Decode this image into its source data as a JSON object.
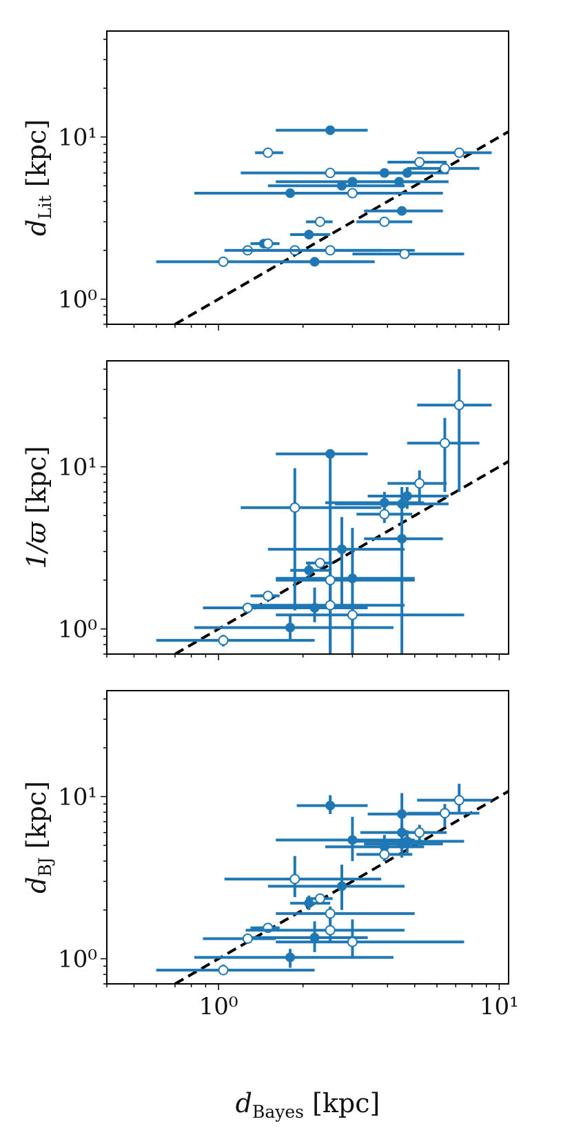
{
  "chart_data": [
    {
      "type": "scatter",
      "ylabel": {
        "main": "d",
        "sub": "Lit",
        "unit": "[kpc]"
      },
      "xscale": "log",
      "yscale": "log",
      "xlim": [
        0.4,
        10.8
      ],
      "ylim": [
        0.7,
        45
      ],
      "xticks": [
        {
          "value": 1,
          "label": "10⁰"
        },
        {
          "value": 10,
          "label": "10¹"
        }
      ],
      "yticks": [
        {
          "value": 1,
          "label": "10⁰"
        },
        {
          "value": 10,
          "label": "10¹"
        }
      ],
      "show_xtick_labels": false,
      "reference_line": "y = x (dashed)",
      "series": [
        {
          "marker": "filled",
          "points": [
            {
              "x": 2.5,
              "y": 11,
              "xerr": [
                1.6,
                3.4
              ]
            },
            {
              "x": 3.9,
              "y": 6,
              "xerr": [
                2.4,
                5.4
              ]
            },
            {
              "x": 4.7,
              "y": 6,
              "xerr": [
                3.4,
                6.6
              ]
            },
            {
              "x": 3.0,
              "y": 5.3,
              "xerr": [
                1.6,
                5.0
              ]
            },
            {
              "x": 2.75,
              "y": 5.0,
              "xerr": [
                1.5,
                4.6
              ]
            },
            {
              "x": 4.4,
              "y": 5.3,
              "xerr": [
                2.6,
                6.6
              ]
            },
            {
              "x": 1.8,
              "y": 4.5,
              "xerr": [
                0.82,
                4.2
              ]
            },
            {
              "x": 4.5,
              "y": 3.5,
              "xerr": [
                3.3,
                6.3
              ]
            },
            {
              "x": 2.1,
              "y": 2.5,
              "xerr": [
                1.8,
                2.5
              ]
            },
            {
              "x": 1.45,
              "y": 2.2,
              "xerr": [
                1.3,
                1.6
              ]
            },
            {
              "x": 2.2,
              "y": 1.7,
              "xerr": [
                1.3,
                3.4
              ]
            }
          ]
        },
        {
          "marker": "open",
          "points": [
            {
              "x": 1.5,
              "y": 8.0,
              "xerr": [
                1.35,
                1.7
              ]
            },
            {
              "x": 7.2,
              "y": 8.0,
              "xerr": [
                5.1,
                9.4
              ]
            },
            {
              "x": 5.2,
              "y": 7.0,
              "xerr": [
                4.0,
                6.5
              ]
            },
            {
              "x": 6.4,
              "y": 6.4,
              "xerr": [
                4.7,
                8.5
              ]
            },
            {
              "x": 2.5,
              "y": 6.0,
              "xerr": [
                1.2,
                5.3
              ]
            },
            {
              "x": 3.0,
              "y": 4.5,
              "xerr": [
                1.9,
                6.3
              ]
            },
            {
              "x": 2.3,
              "y": 3.0,
              "xerr": [
                2.05,
                2.55
              ]
            },
            {
              "x": 3.9,
              "y": 3.0,
              "xerr": [
                3.1,
                4.9
              ]
            },
            {
              "x": 1.5,
              "y": 2.2,
              "xerr": [
                1.35,
                1.65
              ]
            },
            {
              "x": 1.27,
              "y": 2.0,
              "xerr": [
                1.05,
                1.6
              ]
            },
            {
              "x": 1.87,
              "y": 2.0,
              "xerr": [
                1.2,
                3.8
              ]
            },
            {
              "x": 2.5,
              "y": 2.0,
              "xerr": [
                1.6,
                5.0
              ]
            },
            {
              "x": 4.6,
              "y": 1.9,
              "xerr": [
                3.0,
                7.5
              ]
            },
            {
              "x": 1.04,
              "y": 1.7,
              "xerr": [
                0.6,
                3.6
              ]
            }
          ]
        }
      ]
    },
    {
      "type": "scatter",
      "ylabel": {
        "main": "1/ϖ",
        "sub": "",
        "unit": "[kpc]"
      },
      "xscale": "log",
      "yscale": "log",
      "xlim": [
        0.4,
        10.8
      ],
      "ylim": [
        0.7,
        45
      ],
      "xticks": [
        {
          "value": 1,
          "label": "10⁰"
        },
        {
          "value": 10,
          "label": "10¹"
        }
      ],
      "yticks": [
        {
          "value": 1,
          "label": "10⁰"
        },
        {
          "value": 10,
          "label": "10¹"
        }
      ],
      "show_xtick_labels": false,
      "reference_line": "y = x (dashed)",
      "series": [
        {
          "marker": "filled",
          "points": [
            {
              "x": 2.5,
              "y": 12,
              "xerr": [
                1.6,
                3.4
              ],
              "yerr": [
                0.7,
                12
              ]
            },
            {
              "x": 3.9,
              "y": 6.0,
              "xerr": [
                2.4,
                5.4
              ],
              "yerr": [
                5.0,
                7.0
              ]
            },
            {
              "x": 4.7,
              "y": 6.6,
              "xerr": [
                3.4,
                6.6
              ],
              "yerr": [
                5.5,
                7.5
              ]
            },
            {
              "x": 4.5,
              "y": 5.9,
              "xerr": [
                2.6,
                6.6
              ],
              "yerr": [
                4.5,
                7.5
              ]
            },
            {
              "x": 4.5,
              "y": 3.6,
              "xerr": [
                3.3,
                6.3
              ],
              "yerr": [
                0.7,
                5.0
              ]
            },
            {
              "x": 2.75,
              "y": 3.1,
              "xerr": [
                1.5,
                4.6
              ],
              "yerr": [
                1.4,
                4.9
              ]
            },
            {
              "x": 2.1,
              "y": 2.3,
              "xerr": [
                1.8,
                2.5
              ],
              "yerr": [
                2.1,
                2.5
              ]
            },
            {
              "x": 3.0,
              "y": 2.05,
              "xerr": [
                1.6,
                5.0
              ],
              "yerr": [
                0.7,
                4.2
              ]
            },
            {
              "x": 1.5,
              "y": 1.6,
              "xerr": [
                1.3,
                1.65
              ],
              "yerr": [
                1.5,
                1.7
              ]
            },
            {
              "x": 2.2,
              "y": 1.35,
              "xerr": [
                1.3,
                3.4
              ],
              "yerr": [
                1.1,
                1.8
              ]
            },
            {
              "x": 1.8,
              "y": 1.02,
              "xerr": [
                0.82,
                4.2
              ],
              "yerr": [
                0.85,
                1.2
              ]
            }
          ]
        },
        {
          "marker": "open",
          "points": [
            {
              "x": 7.2,
              "y": 24,
              "xerr": [
                5.1,
                9.4
              ],
              "yerr": [
                7.0,
                40
              ]
            },
            {
              "x": 6.4,
              "y": 14,
              "xerr": [
                4.7,
                8.5
              ],
              "yerr": [
                7.0,
                20
              ]
            },
            {
              "x": 5.2,
              "y": 7.9,
              "xerr": [
                4.0,
                6.5
              ],
              "yerr": [
                6.0,
                9.5
              ]
            },
            {
              "x": 3.9,
              "y": 5.1,
              "xerr": [
                3.1,
                4.9
              ],
              "yerr": [
                4.5,
                6.5
              ]
            },
            {
              "x": 1.87,
              "y": 5.6,
              "xerr": [
                1.2,
                3.8
              ],
              "yerr": [
                1.3,
                9.8
              ]
            },
            {
              "x": 2.3,
              "y": 2.55,
              "xerr": [
                2.05,
                2.55
              ],
              "yerr": [
                2.4,
                2.7
              ]
            },
            {
              "x": 2.5,
              "y": 2.0,
              "xerr": [
                1.6,
                5.0
              ],
              "yerr": [
                1.3,
                2.4
              ]
            },
            {
              "x": 1.5,
              "y": 1.6,
              "xerr": [
                1.35,
                1.65
              ],
              "yerr": [
                1.5,
                1.7
              ]
            },
            {
              "x": 2.5,
              "y": 1.4,
              "xerr": [
                1.25,
                4.6
              ],
              "yerr": [
                0.7,
                1.9
              ]
            },
            {
              "x": 1.27,
              "y": 1.35,
              "xerr": [
                0.88,
                1.6
              ],
              "yerr": [
                1.25,
                1.45
              ]
            },
            {
              "x": 3.0,
              "y": 1.22,
              "xerr": [
                1.6,
                7.5
              ],
              "yerr": [
                0.7,
                1.5
              ]
            },
            {
              "x": 1.04,
              "y": 0.85,
              "xerr": [
                0.6,
                2.2
              ],
              "yerr": [
                0.78,
                0.92
              ]
            }
          ]
        }
      ]
    },
    {
      "type": "scatter",
      "ylabel": {
        "main": "d",
        "sub": "BJ",
        "unit": "[kpc]"
      },
      "xlabel": {
        "main": "d",
        "sub": "Bayes",
        "unit": "[kpc]"
      },
      "xscale": "log",
      "yscale": "log",
      "xlim": [
        0.4,
        10.8
      ],
      "ylim": [
        0.7,
        45
      ],
      "xticks": [
        {
          "value": 1,
          "label": "10⁰"
        },
        {
          "value": 10,
          "label": "10¹"
        }
      ],
      "yticks": [
        {
          "value": 1,
          "label": "10⁰"
        },
        {
          "value": 10,
          "label": "10¹"
        }
      ],
      "show_xtick_labels": true,
      "reference_line": "y = x (dashed)",
      "series": [
        {
          "marker": "filled",
          "points": [
            {
              "x": 2.5,
              "y": 8.8,
              "xerr": [
                1.9,
                3.4
              ],
              "yerr": [
                7.8,
                10.2
              ]
            },
            {
              "x": 4.5,
              "y": 7.8,
              "xerr": [
                3.4,
                6.6
              ],
              "yerr": [
                6.2,
                10.5
              ]
            },
            {
              "x": 4.5,
              "y": 6.0,
              "xerr": [
                3.2,
                5.6
              ],
              "yerr": [
                5.2,
                6.8
              ]
            },
            {
              "x": 3.0,
              "y": 5.4,
              "xerr": [
                1.6,
                5.0
              ],
              "yerr": [
                4.0,
                7.5
              ]
            },
            {
              "x": 3.9,
              "y": 4.9,
              "xerr": [
                2.4,
                5.4
              ],
              "yerr": [
                4.0,
                5.8
              ]
            },
            {
              "x": 4.5,
              "y": 5.1,
              "xerr": [
                3.3,
                6.3
              ],
              "yerr": [
                4.2,
                6.3
              ]
            },
            {
              "x": 4.7,
              "y": 5.3,
              "xerr": [
                3.0,
                7.5
              ],
              "yerr": [
                4.4,
                6.2
              ]
            },
            {
              "x": 2.75,
              "y": 2.8,
              "xerr": [
                1.5,
                4.6
              ],
              "yerr": [
                2.0,
                3.8
              ]
            },
            {
              "x": 2.1,
              "y": 2.2,
              "xerr": [
                1.8,
                2.5
              ],
              "yerr": [
                2.0,
                2.45
              ]
            },
            {
              "x": 1.5,
              "y": 1.55,
              "xerr": [
                1.3,
                1.65
              ],
              "yerr": [
                1.45,
                1.65
              ]
            },
            {
              "x": 2.2,
              "y": 1.35,
              "xerr": [
                1.3,
                3.4
              ],
              "yerr": [
                1.1,
                1.7
              ]
            },
            {
              "x": 1.8,
              "y": 1.02,
              "xerr": [
                0.82,
                4.2
              ],
              "yerr": [
                0.88,
                1.15
              ]
            }
          ]
        },
        {
          "marker": "open",
          "points": [
            {
              "x": 7.2,
              "y": 9.5,
              "xerr": [
                5.1,
                9.4
              ],
              "yerr": [
                8.0,
                12.0
              ]
            },
            {
              "x": 6.4,
              "y": 7.9,
              "xerr": [
                4.7,
                8.5
              ],
              "yerr": [
                6.5,
                9.0
              ]
            },
            {
              "x": 5.2,
              "y": 6.0,
              "xerr": [
                4.0,
                6.5
              ],
              "yerr": [
                5.3,
                6.7
              ]
            },
            {
              "x": 3.9,
              "y": 4.4,
              "xerr": [
                3.1,
                4.9
              ],
              "yerr": [
                4.0,
                4.8
              ]
            },
            {
              "x": 1.87,
              "y": 3.1,
              "xerr": [
                1.05,
                3.8
              ],
              "yerr": [
                2.4,
                4.3
              ]
            },
            {
              "x": 2.3,
              "y": 2.35,
              "xerr": [
                2.05,
                2.55
              ],
              "yerr": [
                2.25,
                2.5
              ]
            },
            {
              "x": 2.5,
              "y": 1.9,
              "xerr": [
                1.6,
                5.0
              ],
              "yerr": [
                1.7,
                2.1
              ]
            },
            {
              "x": 1.5,
              "y": 1.55,
              "xerr": [
                1.35,
                1.65
              ],
              "yerr": [
                1.45,
                1.65
              ]
            },
            {
              "x": 2.5,
              "y": 1.5,
              "xerr": [
                1.25,
                4.6
              ],
              "yerr": [
                1.25,
                1.8
              ]
            },
            {
              "x": 1.27,
              "y": 1.33,
              "xerr": [
                0.88,
                1.6
              ],
              "yerr": [
                1.25,
                1.42
              ]
            },
            {
              "x": 3.0,
              "y": 1.27,
              "xerr": [
                1.6,
                7.5
              ],
              "yerr": [
                1.0,
                1.75
              ]
            },
            {
              "x": 1.04,
              "y": 0.85,
              "xerr": [
                0.6,
                2.2
              ],
              "yerr": [
                0.8,
                0.92
              ]
            }
          ]
        }
      ]
    }
  ],
  "colors": {
    "series": "#1f77b4",
    "reference_line": "#000000",
    "axes": "#000000"
  }
}
